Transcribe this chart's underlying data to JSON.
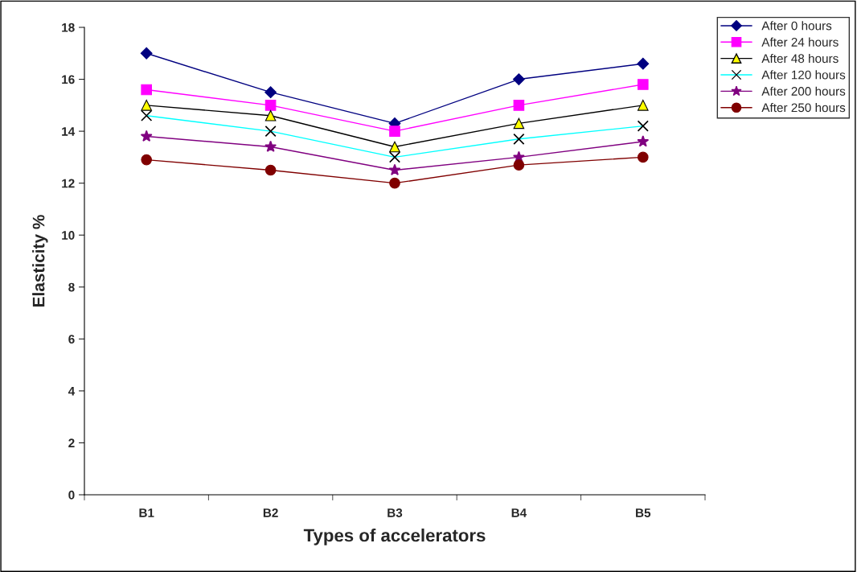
{
  "chart_data": {
    "type": "line",
    "xlabel": "Types of accelerators",
    "ylabel": "Elasticity %",
    "categories": [
      "B1",
      "B2",
      "B3",
      "B4",
      "B5"
    ],
    "series": [
      {
        "name": "After 0 hours",
        "color": "#000080",
        "marker": "diamond",
        "values": [
          17.0,
          15.5,
          14.3,
          16.0,
          16.6
        ]
      },
      {
        "name": "After 24 hours",
        "color": "#ff00ff",
        "marker": "square",
        "values": [
          15.6,
          15.0,
          14.0,
          15.0,
          15.8
        ]
      },
      {
        "name": "After 48 hours",
        "color": "#000000",
        "colors": [
          "#ffff00",
          "#ffff00",
          "#ffff00",
          "#ffff00",
          "#ffff00"
        ],
        "marker": "triangle",
        "values": [
          15.0,
          14.6,
          13.4,
          14.3,
          15.0
        ]
      },
      {
        "name": "After 120 hours",
        "color": "#00ffff",
        "colors": [
          "#000000",
          "#000000",
          "#000000",
          "#000000",
          "#000000"
        ],
        "marker": "cross",
        "values": [
          14.6,
          14.0,
          13.0,
          13.7,
          14.2
        ]
      },
      {
        "name": "After 200 hours",
        "color": "#800080",
        "marker": "star",
        "values": [
          13.8,
          13.4,
          12.5,
          13.0,
          13.6
        ]
      },
      {
        "name": "After 250 hours",
        "color": "#800000",
        "marker": "circle",
        "values": [
          12.9,
          12.5,
          12.0,
          12.7,
          13.0
        ]
      }
    ],
    "ylim": [
      0,
      18
    ],
    "yticks": [
      0,
      2,
      4,
      6,
      8,
      10,
      12,
      14,
      16,
      18
    ],
    "grid": false,
    "legend": "top right"
  }
}
